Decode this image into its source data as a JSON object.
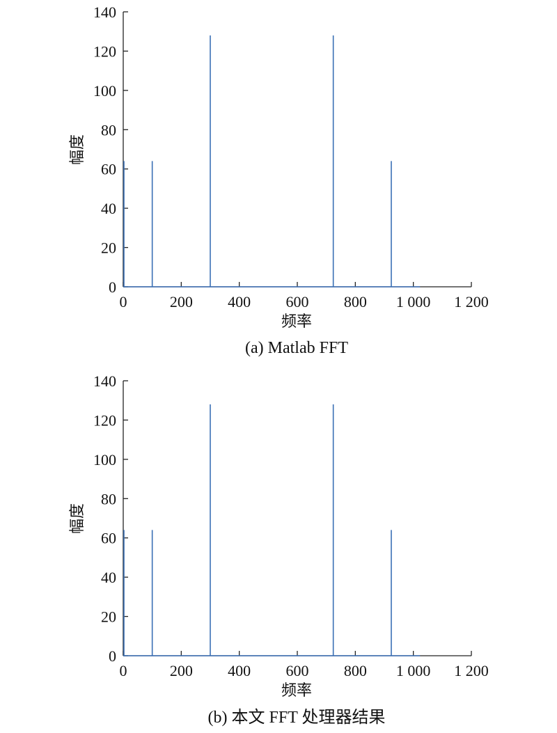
{
  "chart_data": [
    {
      "type": "line",
      "caption": "(a) Matlab FFT",
      "xlabel": "频率",
      "ylabel": "幅度",
      "xlim": [
        0,
        1200
      ],
      "ylim": [
        0,
        140
      ],
      "xticks": [
        0,
        200,
        400,
        600,
        800,
        1000,
        1200
      ],
      "xtick_labels": [
        "0",
        "200",
        "400",
        "600",
        "800",
        "1 000",
        "1 200"
      ],
      "yticks": [
        0,
        20,
        40,
        60,
        80,
        100,
        120,
        140
      ],
      "ytick_labels": [
        "0",
        "20",
        "40",
        "60",
        "80",
        "100",
        "120",
        "140"
      ],
      "series": [
        {
          "color": "#3a6fb5",
          "x_range": [
            0,
            1023
          ],
          "baseline": 0,
          "peaks": [
            {
              "x": 0,
              "y": 64
            },
            {
              "x": 100,
              "y": 64
            },
            {
              "x": 300,
              "y": 128
            },
            {
              "x": 724,
              "y": 128
            },
            {
              "x": 924,
              "y": 64
            }
          ]
        }
      ],
      "grid": false
    },
    {
      "type": "line",
      "caption": "(b) 本文 FFT 处理器结果",
      "xlabel": "频率",
      "ylabel": "幅度",
      "xlim": [
        0,
        1200
      ],
      "ylim": [
        0,
        140
      ],
      "xticks": [
        0,
        200,
        400,
        600,
        800,
        1000,
        1200
      ],
      "xtick_labels": [
        "0",
        "200",
        "400",
        "600",
        "800",
        "1 000",
        "1 200"
      ],
      "yticks": [
        0,
        20,
        40,
        60,
        80,
        100,
        120,
        140
      ],
      "ytick_labels": [
        "0",
        "20",
        "40",
        "60",
        "80",
        "100",
        "120",
        "140"
      ],
      "series": [
        {
          "color": "#3a6fb5",
          "x_range": [
            0,
            1023
          ],
          "baseline": 0,
          "peaks": [
            {
              "x": 0,
              "y": 64
            },
            {
              "x": 100,
              "y": 64
            },
            {
              "x": 300,
              "y": 128
            },
            {
              "x": 724,
              "y": 128
            },
            {
              "x": 924,
              "y": 64
            }
          ]
        }
      ],
      "grid": false
    }
  ]
}
